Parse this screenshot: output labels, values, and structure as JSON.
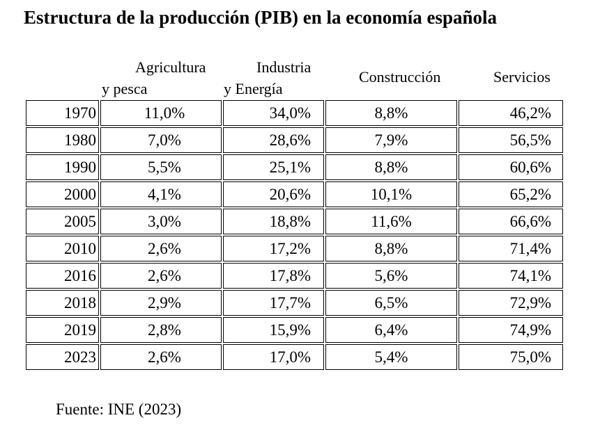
{
  "title": "Estructura de la producción (PIB) en la economía española",
  "headers": {
    "agri_line1": "Agricultura",
    "agri_line2": "y pesca",
    "ind_line1": "Industria",
    "ind_line2": "y Energía",
    "construccion": "Construcción",
    "servicios": "Servicios"
  },
  "rows": [
    {
      "year": "1970",
      "agri": "11,0%",
      "ind": "34,0%",
      "cons": "8,8%",
      "serv": "46,2%"
    },
    {
      "year": "1980",
      "agri": "7,0%",
      "ind": "28,6%",
      "cons": "7,9%",
      "serv": "56,5%"
    },
    {
      "year": "1990",
      "agri": "5,5%",
      "ind": "25,1%",
      "cons": "8,8%",
      "serv": "60,6%"
    },
    {
      "year": "2000",
      "agri": "4,1%",
      "ind": "20,6%",
      "cons": "10,1%",
      "serv": "65,2%"
    },
    {
      "year": "2005",
      "agri": "3,0%",
      "ind": "18,8%",
      "cons": "11,6%",
      "serv": "66,6%"
    },
    {
      "year": "2010",
      "agri": "2,6%",
      "ind": "17,2%",
      "cons": "8,8%",
      "serv": "71,4%"
    },
    {
      "year": "2016",
      "agri": "2,6%",
      "ind": "17,8%",
      "cons": "5,6%",
      "serv": "74,1%"
    },
    {
      "year": "2018",
      "agri": "2,9%",
      "ind": "17,7%",
      "cons": "6,5%",
      "serv": "72,9%"
    },
    {
      "year": "2019",
      "agri": "2,8%",
      "ind": "15,9%",
      "cons": "6,4%",
      "serv": "74,9%"
    },
    {
      "year": "2023",
      "agri": "2,6%",
      "ind": "17,0%",
      "cons": "5,4%",
      "serv": "75,0%"
    }
  ],
  "source": "Fuente: INE (2023)"
}
